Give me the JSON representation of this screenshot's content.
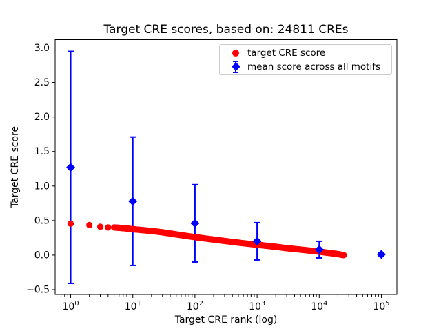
{
  "title": "Target CRE scores, based on: 24811 CREs",
  "axes": {
    "xlabel": "Target CRE rank (log)",
    "ylabel": "Target CRE score"
  },
  "legend": {
    "position": "upper right",
    "background": "#ffffff",
    "border_color": "#cccccc",
    "items": [
      {
        "label": "target CRE score",
        "marker": "circle",
        "color": "#ff0000"
      },
      {
        "label": "mean score across all motifs",
        "marker": "diamond-with-errorbar",
        "color": "#0000ff"
      }
    ]
  },
  "colors": {
    "frame": "#000000",
    "background": "#ffffff",
    "red": "#ff0000",
    "blue": "#0000ff"
  },
  "chart_data": {
    "type": "scatter",
    "title": "Target CRE scores, based on: 24811 CREs",
    "xlabel": "Target CRE rank (log)",
    "ylabel": "Target CRE score",
    "x_scale": "log10",
    "grid": false,
    "xlim_log10": [
      -0.25,
      5.25
    ],
    "ylim": [
      -0.57,
      3.12
    ],
    "x_major_ticks": [
      1,
      10,
      100,
      1000,
      10000,
      100000
    ],
    "x_major_tick_exponents": [
      0,
      1,
      2,
      3,
      4,
      5
    ],
    "x_minor_ticks": "log-decade multiples 2-9 within axis range",
    "y_ticks": [
      -0.5,
      0.0,
      0.5,
      1.0,
      1.5,
      2.0,
      2.5,
      3.0
    ],
    "series": [
      {
        "name": "target CRE score",
        "type": "scatter",
        "marker": "circle",
        "color": "#ff0000",
        "n_points": 24811,
        "note": "dense monotonically-decreasing band, ranks 1..24811; anchor points [rank, score] sampled from pixels, interpolate linearly in log10(rank)",
        "points": [
          [
            1,
            0.455
          ],
          [
            2,
            0.435
          ],
          [
            3,
            0.41
          ],
          [
            4,
            0.4
          ],
          [
            5,
            0.4
          ],
          [
            6,
            0.395
          ],
          [
            8,
            0.385
          ],
          [
            10,
            0.375
          ],
          [
            15,
            0.36
          ],
          [
            20,
            0.35
          ],
          [
            30,
            0.33
          ],
          [
            50,
            0.3
          ],
          [
            70,
            0.28
          ],
          [
            100,
            0.26
          ],
          [
            200,
            0.225
          ],
          [
            300,
            0.205
          ],
          [
            500,
            0.18
          ],
          [
            1000,
            0.15
          ],
          [
            2000,
            0.12
          ],
          [
            3000,
            0.1
          ],
          [
            5000,
            0.08
          ],
          [
            10000,
            0.05
          ],
          [
            15000,
            0.03
          ],
          [
            20000,
            0.015
          ],
          [
            24811,
            0.0
          ]
        ]
      },
      {
        "name": "mean score across all motifs",
        "type": "errorbar-scatter",
        "marker": "diamond",
        "color": "#0000ff",
        "x": [
          1,
          10,
          100,
          1000,
          10000,
          100000
        ],
        "mean": [
          1.27,
          0.78,
          0.46,
          0.2,
          0.08,
          0.01
        ],
        "err": [
          1.68,
          0.93,
          0.56,
          0.27,
          0.12,
          0.02
        ]
      }
    ]
  }
}
